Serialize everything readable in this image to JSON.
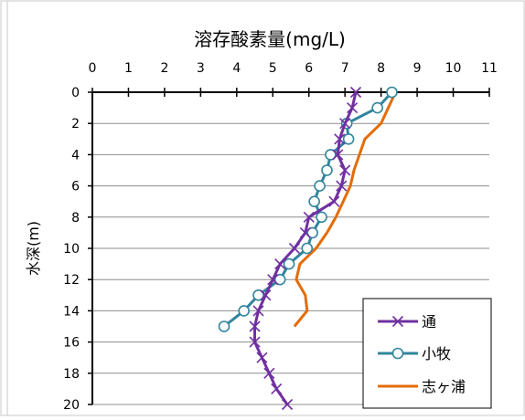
{
  "chart_data": {
    "type": "line",
    "title": "溶存酸素量(mg/L)",
    "xlabel": "",
    "ylabel": "水深(m)",
    "xlim": [
      0,
      11
    ],
    "ylim": [
      0,
      20
    ],
    "x_axis_position": "top",
    "y_axis_inverted": true,
    "xticks": [
      "0",
      "1",
      "2",
      "3",
      "4",
      "5",
      "6",
      "7",
      "8",
      "9",
      "10",
      "11"
    ],
    "yticks": [
      "0",
      "2",
      "4",
      "6",
      "8",
      "10",
      "12",
      "14",
      "16",
      "18",
      "20"
    ],
    "grid": "horizontal",
    "legend": "bottom-right",
    "series": [
      {
        "name": "通",
        "color": "#7030A0",
        "marker": "x",
        "points": [
          [
            7.3,
            0
          ],
          [
            7.2,
            1
          ],
          [
            7.0,
            2
          ],
          [
            6.85,
            3
          ],
          [
            6.8,
            4
          ],
          [
            7.0,
            5
          ],
          [
            6.9,
            6
          ],
          [
            6.7,
            7
          ],
          [
            6.0,
            8
          ],
          [
            5.9,
            9
          ],
          [
            5.6,
            10
          ],
          [
            5.2,
            11
          ],
          [
            5.0,
            12
          ],
          [
            4.8,
            13
          ],
          [
            4.6,
            14
          ],
          [
            4.5,
            15
          ],
          [
            4.5,
            16
          ],
          [
            4.7,
            17
          ],
          [
            4.9,
            18
          ],
          [
            5.1,
            19
          ],
          [
            5.4,
            20
          ]
        ]
      },
      {
        "name": "小牧",
        "color": "#31859C",
        "marker": "circle",
        "points": [
          [
            8.3,
            0
          ],
          [
            7.9,
            1
          ],
          [
            7.05,
            2
          ],
          [
            7.1,
            3
          ],
          [
            6.6,
            4
          ],
          [
            6.5,
            5
          ],
          [
            6.3,
            6
          ],
          [
            6.15,
            7
          ],
          [
            6.35,
            8
          ],
          [
            6.1,
            9
          ],
          [
            5.95,
            10
          ],
          [
            5.45,
            11
          ],
          [
            5.2,
            12
          ],
          [
            4.6,
            13
          ],
          [
            4.2,
            14
          ],
          [
            3.65,
            15
          ]
        ]
      },
      {
        "name": "志ヶ浦",
        "color": "#E46C0A",
        "marker": "none",
        "points": [
          [
            8.4,
            0
          ],
          [
            8.2,
            1
          ],
          [
            8.0,
            2
          ],
          [
            7.55,
            3
          ],
          [
            7.4,
            4
          ],
          [
            7.25,
            5
          ],
          [
            7.15,
            6
          ],
          [
            6.95,
            7
          ],
          [
            6.75,
            8
          ],
          [
            6.5,
            9
          ],
          [
            6.2,
            10
          ],
          [
            5.75,
            11
          ],
          [
            5.65,
            12
          ],
          [
            5.9,
            13
          ],
          [
            5.95,
            14
          ],
          [
            5.6,
            15
          ]
        ]
      }
    ]
  }
}
